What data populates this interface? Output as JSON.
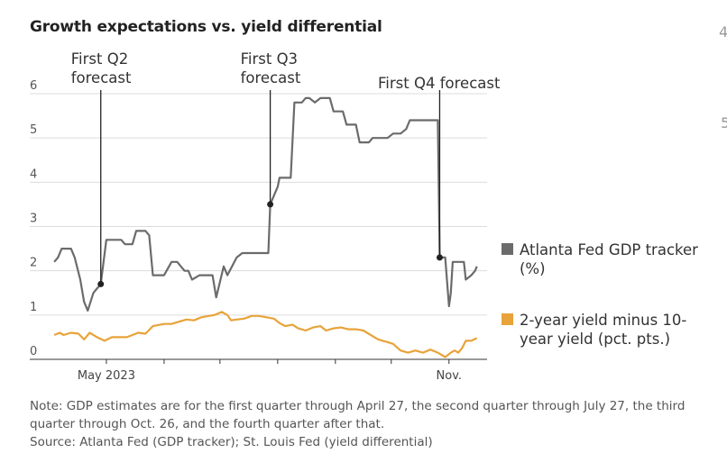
{
  "title": "Growth expectations vs. yield differential",
  "note": "Note: GDP estimates are for the first quarter through April 27, the second quarter through July 27, the third quarter through Oct. 26, and the fourth quarter after that.",
  "source": "Source: Atlanta Fed (GDP tracker); St. Louis Fed (yield differential)",
  "edge_glyphs": [
    "4",
    "5"
  ],
  "colors": {
    "gdp": "#6b6b6b",
    "spread": "#e8a33a",
    "grid": "#dcdcdc",
    "annot": "#222222"
  },
  "chart_data": {
    "type": "line",
    "title": "Growth expectations vs. yield differential",
    "ylim": [
      0,
      6
    ],
    "yticks": [
      "0",
      "1",
      "2",
      "3",
      "4",
      "5",
      "6"
    ],
    "xlim": [
      "2023-04-01",
      "2023-11-20"
    ],
    "xtick_labels": [
      {
        "date": "2023-05-01",
        "label": "May 2023"
      },
      {
        "date": "2023-11-01",
        "label": "Nov."
      }
    ],
    "x_minor_ticks": [
      "2023-06-01",
      "2023-07-01",
      "2023-08-01",
      "2023-09-01",
      "2023-10-01"
    ],
    "grid": true,
    "legend_position": "right",
    "series": [
      {
        "name": "Atlanta Fed GDP tracker (%)",
        "color": "#6b6b6b",
        "points": [
          [
            "2023-04-03",
            2.2
          ],
          [
            "2023-04-05",
            2.3
          ],
          [
            "2023-04-07",
            2.5
          ],
          [
            "2023-04-12",
            2.5
          ],
          [
            "2023-04-14",
            2.3
          ],
          [
            "2023-04-17",
            1.8
          ],
          [
            "2023-04-19",
            1.3
          ],
          [
            "2023-04-21",
            1.1
          ],
          [
            "2023-04-24",
            1.5
          ],
          [
            "2023-04-26",
            1.6
          ],
          [
            "2023-04-28",
            1.7
          ],
          [
            "2023-05-01",
            2.7
          ],
          [
            "2023-05-09",
            2.7
          ],
          [
            "2023-05-11",
            2.6
          ],
          [
            "2023-05-15",
            2.6
          ],
          [
            "2023-05-17",
            2.9
          ],
          [
            "2023-05-22",
            2.9
          ],
          [
            "2023-05-24",
            2.8
          ],
          [
            "2023-05-26",
            1.9
          ],
          [
            "2023-06-01",
            1.9
          ],
          [
            "2023-06-05",
            2.2
          ],
          [
            "2023-06-08",
            2.2
          ],
          [
            "2023-06-12",
            2.0
          ],
          [
            "2023-06-14",
            2.0
          ],
          [
            "2023-06-16",
            1.8
          ],
          [
            "2023-06-20",
            1.9
          ],
          [
            "2023-06-27",
            1.9
          ],
          [
            "2023-06-29",
            1.4
          ],
          [
            "2023-07-03",
            2.1
          ],
          [
            "2023-07-05",
            1.9
          ],
          [
            "2023-07-10",
            2.3
          ],
          [
            "2023-07-13",
            2.4
          ],
          [
            "2023-07-27",
            2.4
          ],
          [
            "2023-07-28",
            3.5
          ],
          [
            "2023-08-01",
            3.9
          ],
          [
            "2023-08-02",
            4.1
          ],
          [
            "2023-08-08",
            4.1
          ],
          [
            "2023-08-10",
            5.8
          ],
          [
            "2023-08-14",
            5.8
          ],
          [
            "2023-08-16",
            5.9
          ],
          [
            "2023-08-18",
            5.9
          ],
          [
            "2023-08-21",
            5.8
          ],
          [
            "2023-08-24",
            5.9
          ],
          [
            "2023-08-29",
            5.9
          ],
          [
            "2023-08-31",
            5.6
          ],
          [
            "2023-09-05",
            5.6
          ],
          [
            "2023-09-07",
            5.3
          ],
          [
            "2023-09-12",
            5.3
          ],
          [
            "2023-09-14",
            4.9
          ],
          [
            "2023-09-19",
            4.9
          ],
          [
            "2023-09-21",
            5.0
          ],
          [
            "2023-09-29",
            5.0
          ],
          [
            "2023-10-02",
            5.1
          ],
          [
            "2023-10-06",
            5.1
          ],
          [
            "2023-10-09",
            5.2
          ],
          [
            "2023-10-11",
            5.4
          ],
          [
            "2023-10-26",
            5.4
          ],
          [
            "2023-10-27",
            2.3
          ],
          [
            "2023-10-30",
            2.3
          ],
          [
            "2023-11-01",
            1.2
          ],
          [
            "2023-11-02",
            1.5
          ],
          [
            "2023-11-03",
            2.2
          ],
          [
            "2023-11-09",
            2.2
          ],
          [
            "2023-11-10",
            1.8
          ],
          [
            "2023-11-13",
            1.9
          ],
          [
            "2023-11-15",
            2.0
          ],
          [
            "2023-11-16",
            2.1
          ]
        ]
      },
      {
        "name": "2-year yield minus 10-year yield (pct. pts.)",
        "color": "#e8a33a",
        "points": [
          [
            "2023-04-03",
            0.55
          ],
          [
            "2023-04-06",
            0.6
          ],
          [
            "2023-04-08",
            0.55
          ],
          [
            "2023-04-12",
            0.6
          ],
          [
            "2023-04-16",
            0.58
          ],
          [
            "2023-04-19",
            0.45
          ],
          [
            "2023-04-22",
            0.6
          ],
          [
            "2023-04-26",
            0.5
          ],
          [
            "2023-04-30",
            0.42
          ],
          [
            "2023-05-04",
            0.5
          ],
          [
            "2023-05-08",
            0.5
          ],
          [
            "2023-05-12",
            0.5
          ],
          [
            "2023-05-15",
            0.55
          ],
          [
            "2023-05-18",
            0.6
          ],
          [
            "2023-05-22",
            0.58
          ],
          [
            "2023-05-26",
            0.75
          ],
          [
            "2023-06-01",
            0.8
          ],
          [
            "2023-06-05",
            0.8
          ],
          [
            "2023-06-09",
            0.85
          ],
          [
            "2023-06-13",
            0.9
          ],
          [
            "2023-06-17",
            0.88
          ],
          [
            "2023-06-21",
            0.95
          ],
          [
            "2023-06-25",
            0.98
          ],
          [
            "2023-06-28",
            1.0
          ],
          [
            "2023-07-02",
            1.07
          ],
          [
            "2023-07-05",
            1.0
          ],
          [
            "2023-07-07",
            0.88
          ],
          [
            "2023-07-10",
            0.9
          ],
          [
            "2023-07-14",
            0.92
          ],
          [
            "2023-07-18",
            0.98
          ],
          [
            "2023-07-22",
            0.98
          ],
          [
            "2023-07-26",
            0.95
          ],
          [
            "2023-07-30",
            0.92
          ],
          [
            "2023-08-02",
            0.82
          ],
          [
            "2023-08-05",
            0.75
          ],
          [
            "2023-08-09",
            0.78
          ],
          [
            "2023-08-12",
            0.7
          ],
          [
            "2023-08-16",
            0.65
          ],
          [
            "2023-08-20",
            0.72
          ],
          [
            "2023-08-24",
            0.75
          ],
          [
            "2023-08-27",
            0.65
          ],
          [
            "2023-08-31",
            0.7
          ],
          [
            "2023-09-04",
            0.72
          ],
          [
            "2023-09-08",
            0.68
          ],
          [
            "2023-09-12",
            0.68
          ],
          [
            "2023-09-16",
            0.65
          ],
          [
            "2023-09-20",
            0.55
          ],
          [
            "2023-09-24",
            0.45
          ],
          [
            "2023-09-28",
            0.4
          ],
          [
            "2023-10-02",
            0.35
          ],
          [
            "2023-10-06",
            0.2
          ],
          [
            "2023-10-10",
            0.15
          ],
          [
            "2023-10-14",
            0.2
          ],
          [
            "2023-10-18",
            0.15
          ],
          [
            "2023-10-22",
            0.22
          ],
          [
            "2023-10-26",
            0.15
          ],
          [
            "2023-10-30",
            0.05
          ],
          [
            "2023-11-02",
            0.15
          ],
          [
            "2023-11-04",
            0.2
          ],
          [
            "2023-11-06",
            0.15
          ],
          [
            "2023-11-08",
            0.25
          ],
          [
            "2023-11-10",
            0.42
          ],
          [
            "2023-11-13",
            0.42
          ],
          [
            "2023-11-16",
            0.48
          ]
        ]
      }
    ],
    "annotations": [
      {
        "lines": [
          "First Q2",
          "forecast"
        ],
        "date": "2023-04-28",
        "value": 1.7,
        "align": "start"
      },
      {
        "lines": [
          "First Q3",
          "forecast"
        ],
        "date": "2023-07-28",
        "value": 3.5,
        "align": "start"
      },
      {
        "lines": [
          "First Q4 forecast"
        ],
        "date": "2023-10-27",
        "value": 2.3,
        "align": "end"
      }
    ]
  }
}
